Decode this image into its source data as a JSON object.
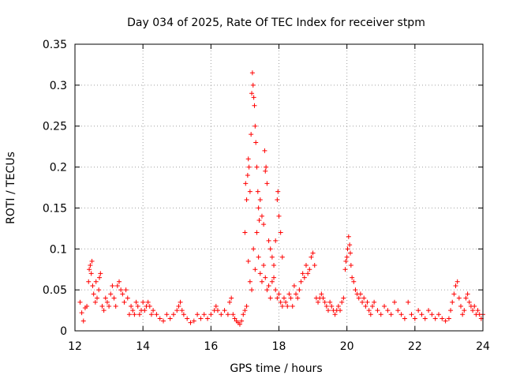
{
  "chart_data": {
    "type": "scatter",
    "title": "Day 034 of 2025, Rate Of TEC Index for receiver stpm",
    "xlabel": "GPS time / hours",
    "ylabel": "ROTI / TECUs",
    "xlim": [
      12,
      24
    ],
    "ylim": [
      0,
      0.35
    ],
    "xticks": [
      12,
      14,
      16,
      18,
      20,
      22,
      24
    ],
    "yticks": [
      0,
      0.05,
      0.1,
      0.15,
      0.2,
      0.25,
      0.3,
      0.35
    ],
    "xtick_labels": [
      "12",
      "14",
      "16",
      "18",
      "20",
      "22",
      "24"
    ],
    "ytick_labels": [
      "0",
      "0.05",
      "0.1",
      "0.15",
      "0.2",
      "0.25",
      "0.3",
      "0.35"
    ],
    "grid": true,
    "marker": "+",
    "color": "#ff0000",
    "series": [
      {
        "name": "ROTI",
        "points": [
          [
            12.15,
            0.035
          ],
          [
            12.2,
            0.022
          ],
          [
            12.25,
            0.012
          ],
          [
            12.3,
            0.028
          ],
          [
            12.35,
            0.03
          ],
          [
            12.4,
            0.06
          ],
          [
            12.42,
            0.075
          ],
          [
            12.45,
            0.08
          ],
          [
            12.48,
            0.07
          ],
          [
            12.5,
            0.085
          ],
          [
            12.52,
            0.055
          ],
          [
            12.55,
            0.045
          ],
          [
            12.6,
            0.035
          ],
          [
            12.62,
            0.06
          ],
          [
            12.65,
            0.04
          ],
          [
            12.7,
            0.05
          ],
          [
            12.72,
            0.065
          ],
          [
            12.75,
            0.07
          ],
          [
            12.8,
            0.03
          ],
          [
            12.85,
            0.025
          ],
          [
            12.9,
            0.04
          ],
          [
            12.95,
            0.035
          ],
          [
            13.0,
            0.03
          ],
          [
            13.05,
            0.045
          ],
          [
            13.1,
            0.055
          ],
          [
            13.15,
            0.04
          ],
          [
            13.2,
            0.03
          ],
          [
            13.25,
            0.055
          ],
          [
            13.3,
            0.06
          ],
          [
            13.35,
            0.05
          ],
          [
            13.4,
            0.045
          ],
          [
            13.45,
            0.035
          ],
          [
            13.5,
            0.05
          ],
          [
            13.55,
            0.04
          ],
          [
            13.6,
            0.02
          ],
          [
            13.65,
            0.03
          ],
          [
            13.7,
            0.025
          ],
          [
            13.75,
            0.02
          ],
          [
            13.8,
            0.035
          ],
          [
            13.85,
            0.03
          ],
          [
            13.9,
            0.02
          ],
          [
            13.95,
            0.025
          ],
          [
            14.0,
            0.035
          ],
          [
            14.05,
            0.025
          ],
          [
            14.1,
            0.03
          ],
          [
            14.15,
            0.035
          ],
          [
            14.2,
            0.03
          ],
          [
            14.25,
            0.02
          ],
          [
            14.3,
            0.025
          ],
          [
            14.4,
            0.02
          ],
          [
            14.5,
            0.015
          ],
          [
            14.6,
            0.012
          ],
          [
            14.7,
            0.02
          ],
          [
            14.8,
            0.015
          ],
          [
            14.9,
            0.02
          ],
          [
            15.0,
            0.025
          ],
          [
            15.05,
            0.03
          ],
          [
            15.1,
            0.035
          ],
          [
            15.15,
            0.025
          ],
          [
            15.2,
            0.02
          ],
          [
            15.3,
            0.015
          ],
          [
            15.4,
            0.01
          ],
          [
            15.5,
            0.012
          ],
          [
            15.6,
            0.02
          ],
          [
            15.7,
            0.015
          ],
          [
            15.8,
            0.02
          ],
          [
            15.9,
            0.015
          ],
          [
            16.0,
            0.02
          ],
          [
            16.1,
            0.025
          ],
          [
            16.15,
            0.03
          ],
          [
            16.2,
            0.025
          ],
          [
            16.3,
            0.02
          ],
          [
            16.4,
            0.025
          ],
          [
            16.5,
            0.02
          ],
          [
            16.55,
            0.035
          ],
          [
            16.6,
            0.04
          ],
          [
            16.65,
            0.02
          ],
          [
            16.7,
            0.015
          ],
          [
            16.75,
            0.012
          ],
          [
            16.8,
            0.01
          ],
          [
            16.85,
            0.008
          ],
          [
            16.9,
            0.012
          ],
          [
            16.95,
            0.02
          ],
          [
            17.0,
            0.025
          ],
          [
            17.05,
            0.03
          ],
          [
            17.0,
            0.12
          ],
          [
            17.02,
            0.18
          ],
          [
            17.05,
            0.16
          ],
          [
            17.08,
            0.19
          ],
          [
            17.1,
            0.21
          ],
          [
            17.12,
            0.2
          ],
          [
            17.15,
            0.17
          ],
          [
            17.18,
            0.24
          ],
          [
            17.2,
            0.29
          ],
          [
            17.22,
            0.315
          ],
          [
            17.24,
            0.3
          ],
          [
            17.26,
            0.285
          ],
          [
            17.28,
            0.275
          ],
          [
            17.3,
            0.25
          ],
          [
            17.32,
            0.23
          ],
          [
            17.35,
            0.2
          ],
          [
            17.38,
            0.17
          ],
          [
            17.4,
            0.15
          ],
          [
            17.42,
            0.135
          ],
          [
            17.45,
            0.16
          ],
          [
            17.5,
            0.14
          ],
          [
            17.55,
            0.13
          ],
          [
            17.58,
            0.22
          ],
          [
            17.6,
            0.195
          ],
          [
            17.62,
            0.2
          ],
          [
            17.65,
            0.18
          ],
          [
            17.7,
            0.11
          ],
          [
            17.75,
            0.1
          ],
          [
            17.8,
            0.09
          ],
          [
            17.85,
            0.08
          ],
          [
            17.9,
            0.11
          ],
          [
            17.95,
            0.16
          ],
          [
            17.97,
            0.17
          ],
          [
            18.0,
            0.14
          ],
          [
            18.05,
            0.12
          ],
          [
            18.1,
            0.09
          ],
          [
            17.1,
            0.085
          ],
          [
            17.15,
            0.06
          ],
          [
            17.2,
            0.05
          ],
          [
            17.25,
            0.1
          ],
          [
            17.3,
            0.075
          ],
          [
            17.35,
            0.12
          ],
          [
            17.4,
            0.09
          ],
          [
            17.45,
            0.07
          ],
          [
            17.5,
            0.06
          ],
          [
            17.55,
            0.08
          ],
          [
            17.6,
            0.065
          ],
          [
            17.65,
            0.05
          ],
          [
            17.7,
            0.055
          ],
          [
            17.75,
            0.04
          ],
          [
            17.8,
            0.06
          ],
          [
            17.85,
            0.065
          ],
          [
            17.9,
            0.05
          ],
          [
            17.95,
            0.04
          ],
          [
            18.0,
            0.045
          ],
          [
            18.05,
            0.035
          ],
          [
            18.1,
            0.03
          ],
          [
            18.15,
            0.04
          ],
          [
            18.2,
            0.035
          ],
          [
            18.25,
            0.03
          ],
          [
            18.3,
            0.045
          ],
          [
            18.35,
            0.04
          ],
          [
            18.4,
            0.03
          ],
          [
            18.45,
            0.055
          ],
          [
            18.5,
            0.045
          ],
          [
            18.55,
            0.04
          ],
          [
            18.6,
            0.05
          ],
          [
            18.65,
            0.06
          ],
          [
            18.7,
            0.07
          ],
          [
            18.75,
            0.065
          ],
          [
            18.8,
            0.08
          ],
          [
            18.85,
            0.07
          ],
          [
            18.9,
            0.075
          ],
          [
            18.95,
            0.09
          ],
          [
            19.0,
            0.095
          ],
          [
            19.05,
            0.08
          ],
          [
            19.1,
            0.04
          ],
          [
            19.15,
            0.035
          ],
          [
            19.2,
            0.04
          ],
          [
            19.25,
            0.045
          ],
          [
            19.3,
            0.04
          ],
          [
            19.35,
            0.035
          ],
          [
            19.4,
            0.03
          ],
          [
            19.45,
            0.025
          ],
          [
            19.5,
            0.035
          ],
          [
            19.55,
            0.03
          ],
          [
            19.6,
            0.025
          ],
          [
            19.65,
            0.02
          ],
          [
            19.7,
            0.025
          ],
          [
            19.75,
            0.03
          ],
          [
            19.8,
            0.025
          ],
          [
            19.85,
            0.035
          ],
          [
            19.9,
            0.04
          ],
          [
            19.95,
            0.075
          ],
          [
            19.97,
            0.085
          ],
          [
            20.0,
            0.09
          ],
          [
            20.02,
            0.1
          ],
          [
            20.05,
            0.115
          ],
          [
            20.08,
            0.105
          ],
          [
            20.1,
            0.095
          ],
          [
            20.12,
            0.08
          ],
          [
            20.15,
            0.065
          ],
          [
            20.2,
            0.06
          ],
          [
            20.25,
            0.05
          ],
          [
            20.3,
            0.045
          ],
          [
            20.35,
            0.04
          ],
          [
            20.4,
            0.045
          ],
          [
            20.45,
            0.035
          ],
          [
            20.5,
            0.04
          ],
          [
            20.55,
            0.03
          ],
          [
            20.6,
            0.035
          ],
          [
            20.65,
            0.025
          ],
          [
            20.7,
            0.02
          ],
          [
            20.75,
            0.03
          ],
          [
            20.8,
            0.035
          ],
          [
            20.9,
            0.025
          ],
          [
            21.0,
            0.02
          ],
          [
            21.1,
            0.03
          ],
          [
            21.2,
            0.025
          ],
          [
            21.3,
            0.02
          ],
          [
            21.4,
            0.035
          ],
          [
            21.5,
            0.025
          ],
          [
            21.6,
            0.02
          ],
          [
            21.7,
            0.015
          ],
          [
            21.8,
            0.035
          ],
          [
            21.9,
            0.02
          ],
          [
            22.0,
            0.015
          ],
          [
            22.1,
            0.025
          ],
          [
            22.2,
            0.02
          ],
          [
            22.3,
            0.015
          ],
          [
            22.4,
            0.025
          ],
          [
            22.5,
            0.02
          ],
          [
            22.6,
            0.015
          ],
          [
            22.7,
            0.02
          ],
          [
            22.8,
            0.015
          ],
          [
            22.9,
            0.012
          ],
          [
            23.0,
            0.015
          ],
          [
            23.05,
            0.025
          ],
          [
            23.1,
            0.035
          ],
          [
            23.15,
            0.045
          ],
          [
            23.2,
            0.055
          ],
          [
            23.25,
            0.06
          ],
          [
            23.3,
            0.04
          ],
          [
            23.35,
            0.03
          ],
          [
            23.4,
            0.02
          ],
          [
            23.45,
            0.025
          ],
          [
            23.5,
            0.04
          ],
          [
            23.55,
            0.045
          ],
          [
            23.6,
            0.035
          ],
          [
            23.65,
            0.03
          ],
          [
            23.7,
            0.025
          ],
          [
            23.75,
            0.03
          ],
          [
            23.8,
            0.02
          ],
          [
            23.85,
            0.025
          ],
          [
            23.9,
            0.02
          ],
          [
            23.95,
            0.015
          ],
          [
            24.0,
            0.02
          ]
        ]
      }
    ]
  }
}
